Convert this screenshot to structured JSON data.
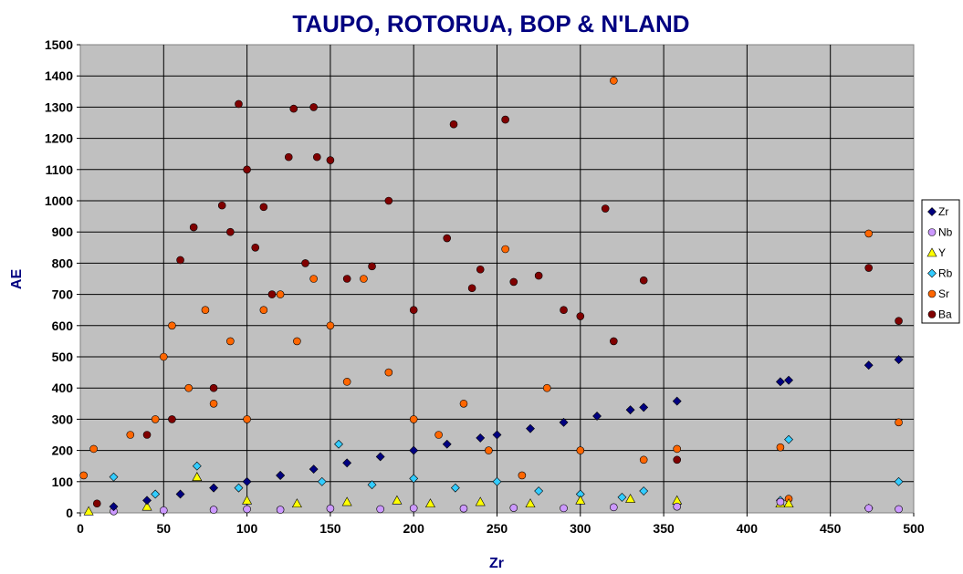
{
  "chart_data": {
    "type": "scatter",
    "title": "TAUPO, ROTORUA, BOP & N'LAND",
    "xlabel": "Zr",
    "ylabel": "AE",
    "xlim": [
      0,
      500
    ],
    "ylim": [
      0,
      1500
    ],
    "x_ticks": [
      "0",
      "50",
      "100",
      "150",
      "200",
      "250",
      "300",
      "350",
      "400",
      "450",
      "500"
    ],
    "y_ticks": [
      "0",
      "100",
      "200",
      "300",
      "400",
      "500",
      "600",
      "700",
      "800",
      "900",
      "1000",
      "1100",
      "1200",
      "1300",
      "1400",
      "1500"
    ],
    "grid": true,
    "plot_background": "#c0c0c0",
    "legend_position": "right",
    "series": [
      {
        "name": "Zr",
        "marker": "diamond",
        "color": "#000080",
        "x": [
          20,
          40,
          60,
          80,
          100,
          120,
          140,
          160,
          180,
          200,
          220,
          240,
          250,
          270,
          290,
          310,
          330,
          338,
          358,
          420,
          425,
          473,
          491
        ],
        "y": [
          20,
          40,
          60,
          80,
          100,
          120,
          140,
          160,
          180,
          200,
          220,
          240,
          250,
          270,
          290,
          310,
          330,
          338,
          358,
          420,
          425,
          473,
          491
        ]
      },
      {
        "name": "Nb",
        "marker": "circle",
        "color": "#cc99ff",
        "x": [
          20,
          50,
          80,
          100,
          120,
          150,
          180,
          200,
          230,
          260,
          290,
          320,
          358,
          420,
          473,
          491
        ],
        "y": [
          5,
          8,
          10,
          12,
          10,
          14,
          12,
          15,
          14,
          16,
          15,
          18,
          20,
          35,
          15,
          12
        ]
      },
      {
        "name": "Y",
        "marker": "triangle",
        "color": "#ffff00",
        "x": [
          5,
          40,
          70,
          100,
          130,
          160,
          190,
          210,
          240,
          270,
          300,
          330,
          358,
          420,
          425
        ],
        "y": [
          5,
          20,
          115,
          40,
          30,
          35,
          40,
          30,
          35,
          30,
          40,
          45,
          40,
          30,
          30
        ]
      },
      {
        "name": "Rb",
        "marker": "diamond",
        "color": "#33ccff",
        "x": [
          20,
          45,
          70,
          95,
          120,
          145,
          155,
          175,
          200,
          225,
          250,
          275,
          300,
          325,
          338,
          358,
          420,
          425,
          473,
          491
        ],
        "y": [
          115,
          60,
          150,
          80,
          120,
          100,
          220,
          90,
          110,
          80,
          100,
          70,
          60,
          50,
          70,
          30,
          40,
          235,
          15,
          100
        ]
      },
      {
        "name": "Sr",
        "marker": "circle",
        "color": "#ff6600",
        "x": [
          2,
          8,
          30,
          45,
          50,
          55,
          65,
          75,
          80,
          90,
          100,
          110,
          120,
          130,
          140,
          150,
          160,
          170,
          185,
          200,
          215,
          230,
          245,
          255,
          265,
          280,
          300,
          320,
          338,
          358,
          420,
          425,
          473,
          491
        ],
        "y": [
          120,
          205,
          250,
          300,
          500,
          600,
          400,
          650,
          350,
          550,
          300,
          650,
          700,
          550,
          750,
          600,
          420,
          750,
          450,
          300,
          250,
          350,
          200,
          845,
          120,
          400,
          200,
          1385,
          170,
          205,
          210,
          45,
          895,
          290
        ]
      },
      {
        "name": "Ba",
        "marker": "circle",
        "color": "#800000",
        "x": [
          10,
          40,
          55,
          60,
          68,
          80,
          85,
          90,
          95,
          100,
          105,
          110,
          115,
          125,
          128,
          135,
          140,
          142,
          150,
          160,
          175,
          185,
          200,
          220,
          224,
          235,
          240,
          255,
          260,
          275,
          290,
          300,
          315,
          320,
          338,
          358,
          473,
          491
        ],
        "y": [
          30,
          250,
          300,
          810,
          915,
          400,
          985,
          900,
          1310,
          1100,
          850,
          980,
          700,
          1140,
          1295,
          800,
          1300,
          1140,
          1130,
          750,
          790,
          1000,
          650,
          880,
          1245,
          720,
          780,
          1260,
          740,
          760,
          650,
          630,
          975,
          550,
          745,
          170,
          785,
          615
        ]
      }
    ]
  }
}
